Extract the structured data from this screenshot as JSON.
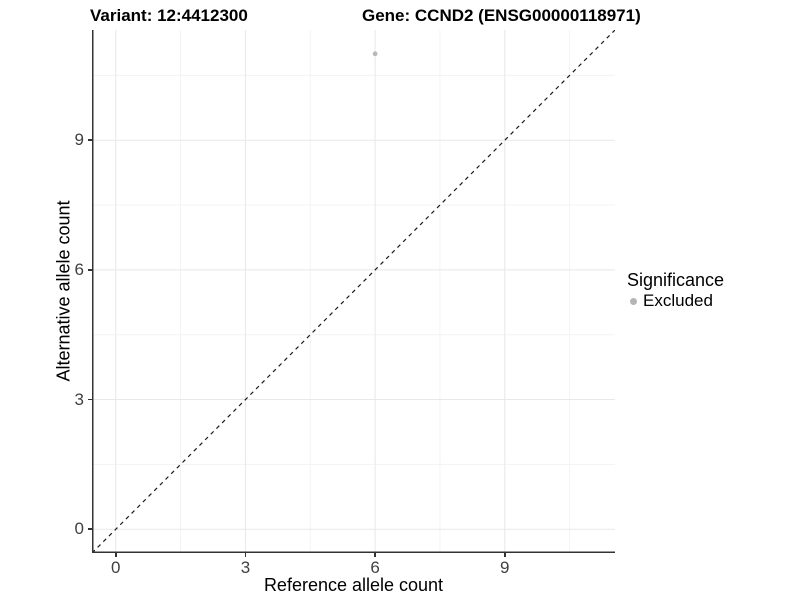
{
  "chart_data": {
    "type": "scatter",
    "titles": {
      "variant": "Variant: 12:4412300",
      "gene": "Gene: CCND2 (ENSG00000118971)"
    },
    "xlabel": "Reference allele count",
    "ylabel": "Alternative allele count",
    "x_ticks": [
      0,
      3,
      6,
      9
    ],
    "y_ticks": [
      0,
      3,
      6,
      9
    ],
    "minor_ticks": [
      1.5,
      4.5,
      7.5,
      10.5
    ],
    "axis_range": [
      -0.55,
      11.55
    ],
    "grid": true,
    "legend_position": "right",
    "points": [
      {
        "x": 6,
        "y": 11,
        "significance": "Excluded",
        "color": "#b8b8b8",
        "radius": 2.4
      }
    ],
    "reference_line": {
      "type": "identity",
      "from": -0.55,
      "to": 11.55,
      "style": "dashed",
      "color": "#1a1a1a"
    },
    "legend": {
      "title": "Significance",
      "items": [
        {
          "label": "Excluded",
          "color": "#b4b4b4",
          "shape": "circle"
        }
      ]
    },
    "colors": {
      "background": "#ffffff",
      "grid_major": "#e8e8e8",
      "grid_minor": "#f3f3f3",
      "axis_line": "#333333",
      "tick_text": "#404040"
    }
  }
}
